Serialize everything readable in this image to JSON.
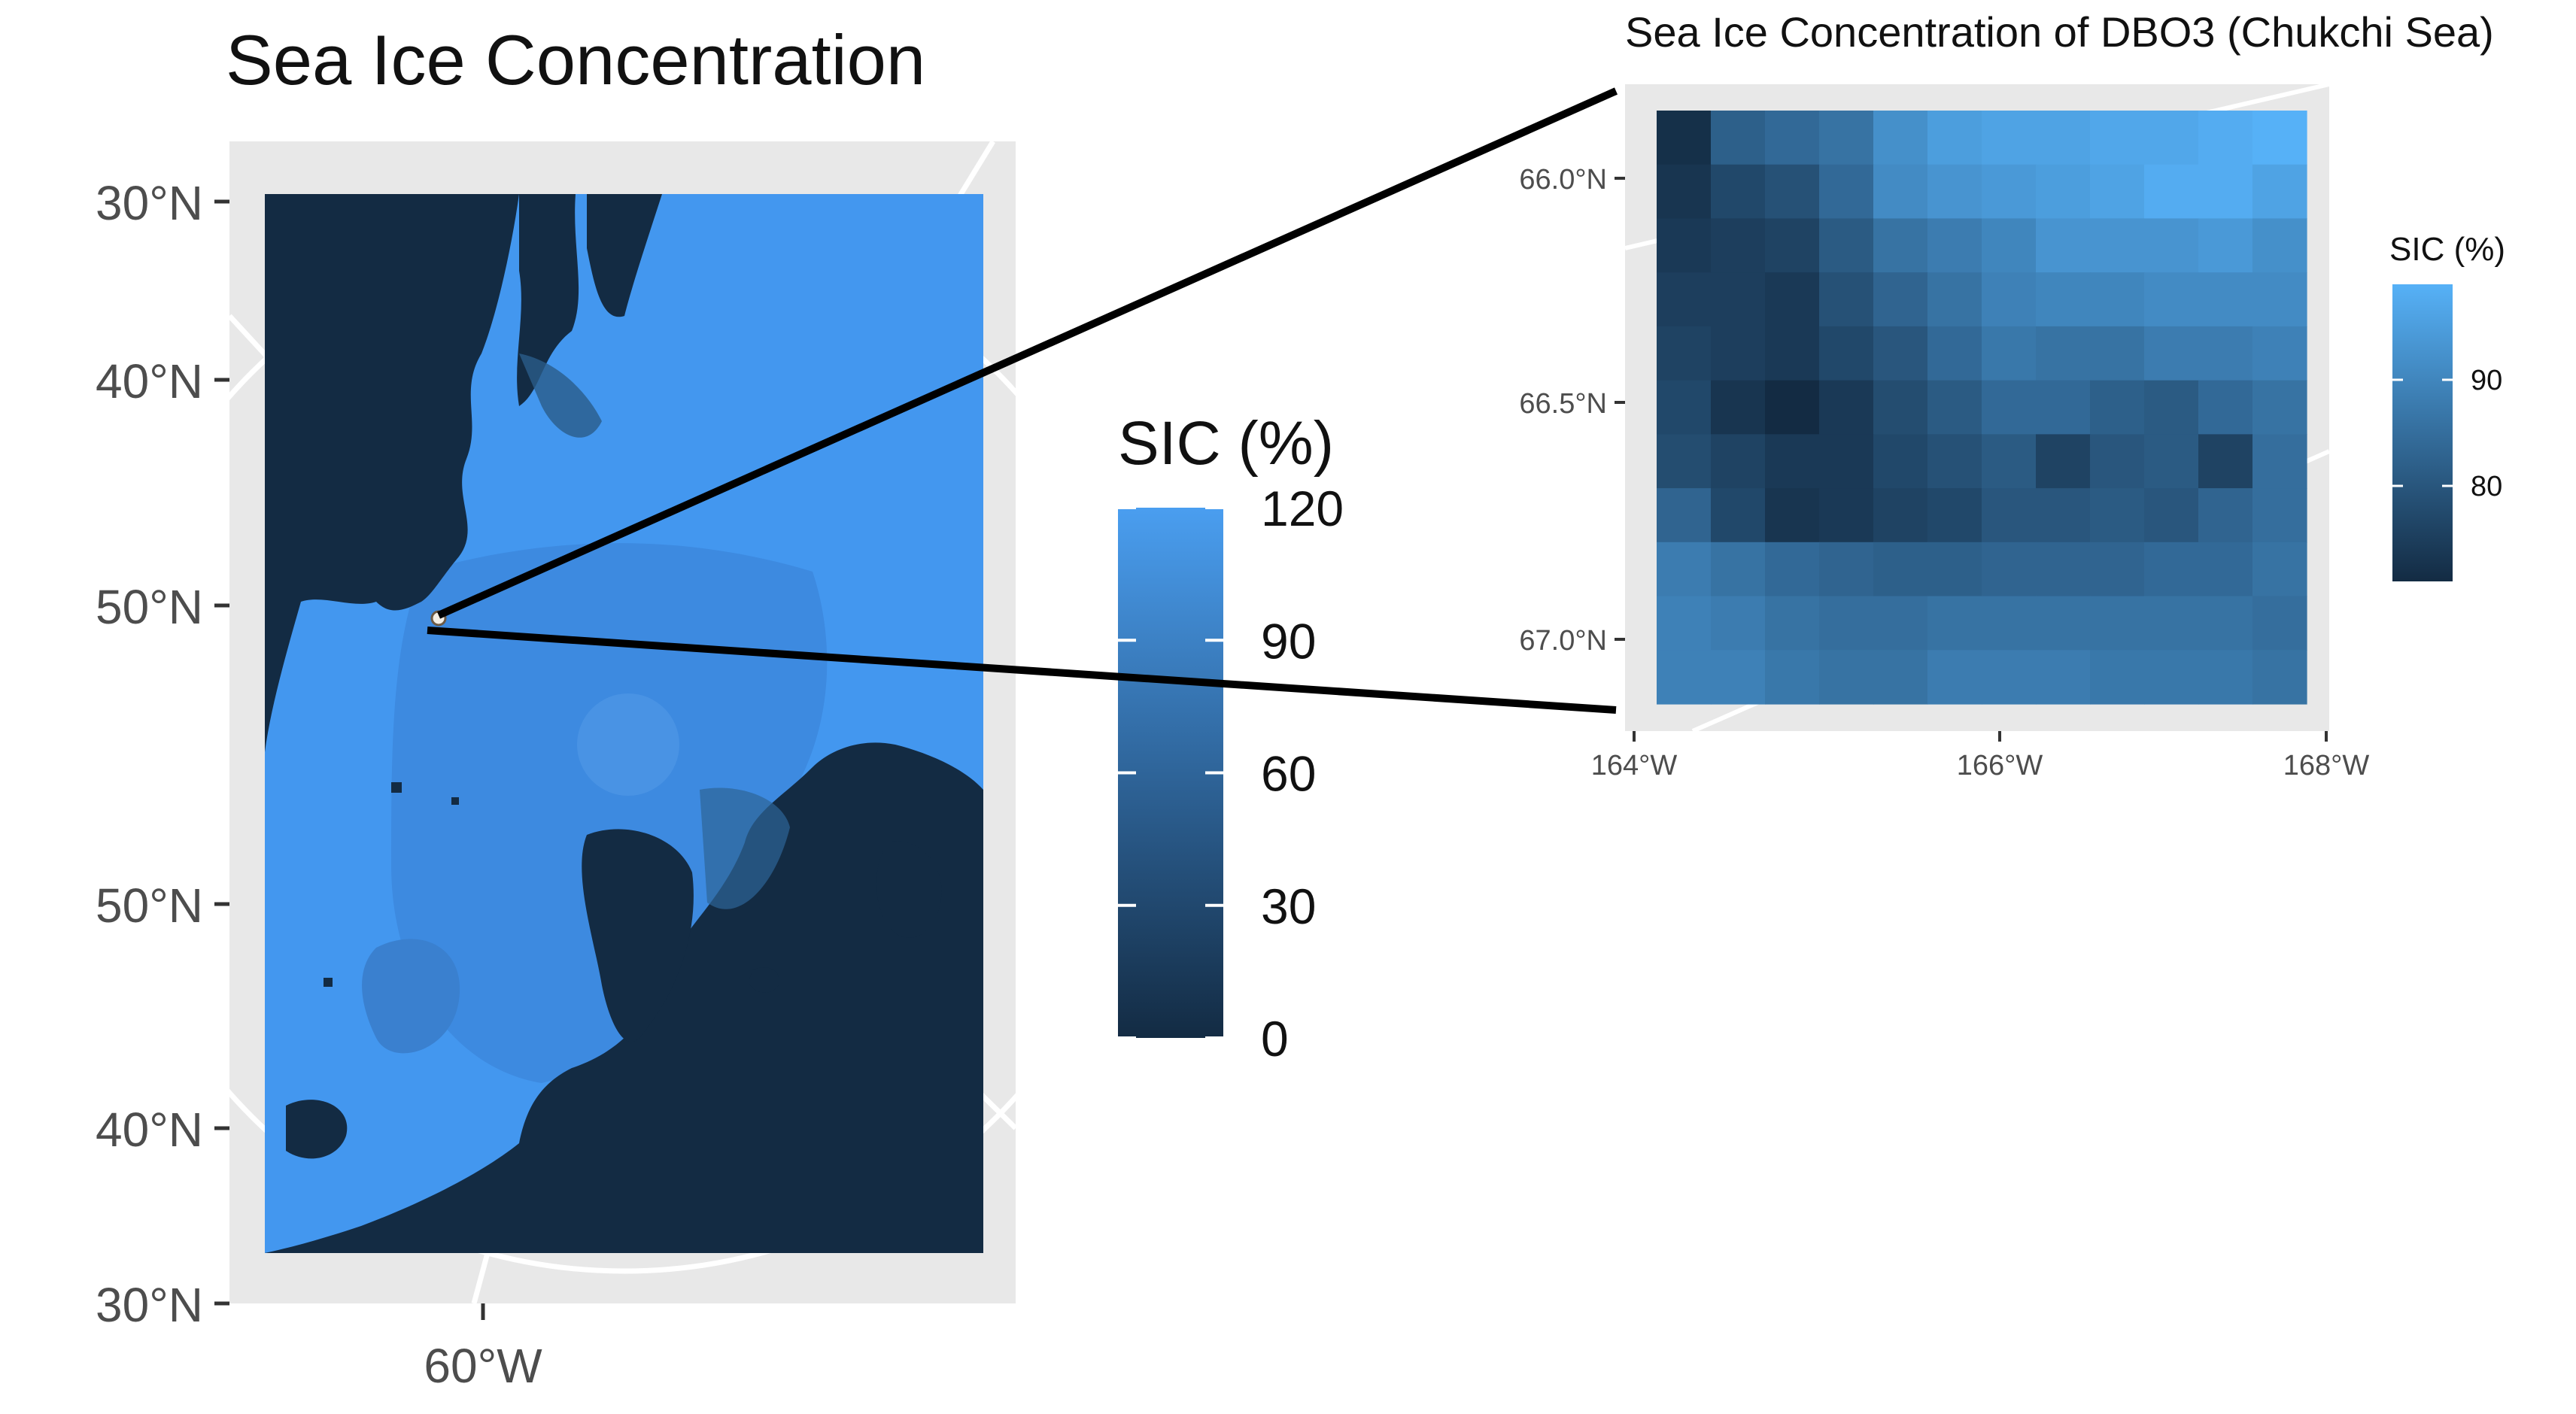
{
  "chart_data": [
    {
      "type": "heatmap",
      "title": "Sea Ice Concentration",
      "subject": "map",
      "y_tick_labels": [
        "30°N",
        "40°N",
        "50°N",
        "50°N",
        "40°N",
        "30°N"
      ],
      "x_tick_labels": [
        "60°W"
      ],
      "legend": {
        "title": "SIC (%)",
        "ticks": [
          0,
          30,
          60,
          90,
          120
        ],
        "range": [
          0,
          120
        ],
        "low_color": "#132B43",
        "high_color": "#56B1F7",
        "placement": "right"
      },
      "grid": true,
      "projection": "polar stereographic"
    },
    {
      "type": "heatmap",
      "title": "Sea Ice Concentration of DBO3 (Chukchi Sea)",
      "x_tick_labels": [
        "164°W",
        "166°W",
        "168°W"
      ],
      "y_tick_labels": [
        "66.0°N",
        "66.5°N",
        "67.0°N"
      ],
      "xlim": [
        -164,
        -168
      ],
      "ylim": [
        65.95,
        67.1
      ],
      "legend": {
        "title": "SIC (%)",
        "ticks": [
          80,
          90
        ],
        "range": [
          71,
          99
        ],
        "low_color": "#132B43",
        "high_color": "#56B1F7",
        "placement": "right"
      },
      "grid": true,
      "z": [
        [
          72,
          82,
          84,
          86,
          92,
          95,
          96,
          96,
          97,
          97,
          98,
          99
        ],
        [
          73,
          77,
          79,
          84,
          91,
          93,
          94,
          95,
          96,
          98,
          98,
          96
        ],
        [
          74,
          75,
          76,
          81,
          86,
          88,
          90,
          93,
          93,
          93,
          94,
          92
        ],
        [
          75,
          75,
          74,
          79,
          83,
          86,
          89,
          90,
          90,
          91,
          91,
          91
        ],
        [
          76,
          75,
          74,
          77,
          80,
          84,
          87,
          86,
          86,
          88,
          88,
          89
        ],
        [
          77,
          73,
          71,
          74,
          78,
          81,
          84,
          84,
          82,
          81,
          84,
          86
        ],
        [
          78,
          76,
          74,
          74,
          77,
          79,
          81,
          76,
          80,
          81,
          76,
          85
        ],
        [
          83,
          77,
          73,
          74,
          76,
          77,
          80,
          80,
          81,
          80,
          83,
          85
        ],
        [
          88,
          86,
          84,
          83,
          82,
          82,
          83,
          83,
          83,
          84,
          84,
          86
        ],
        [
          89,
          88,
          86,
          85,
          85,
          86,
          86,
          86,
          86,
          86,
          86,
          85
        ],
        [
          89,
          89,
          87,
          86,
          86,
          88,
          88,
          88,
          87,
          87,
          87,
          86
        ]
      ]
    }
  ]
}
